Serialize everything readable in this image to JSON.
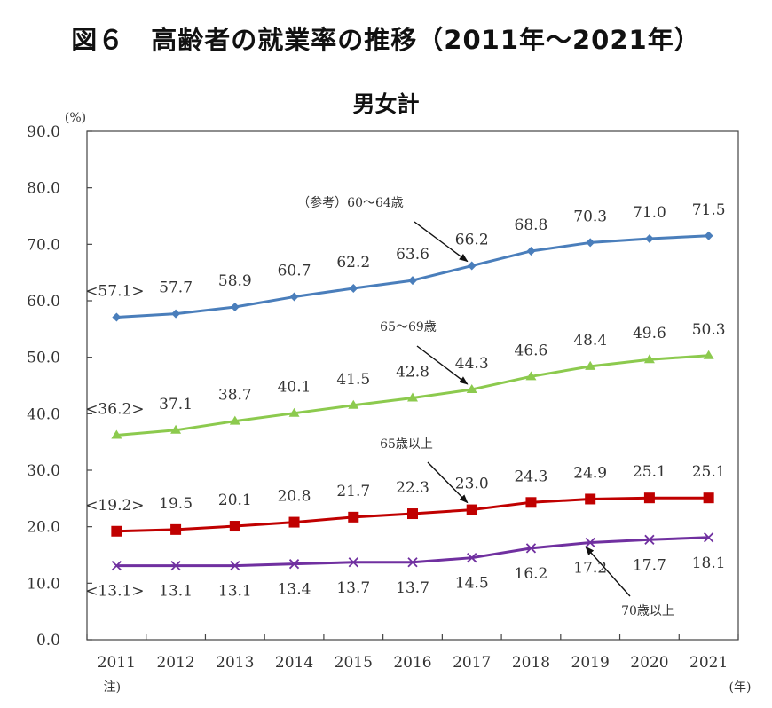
{
  "header": {
    "figure_title": "図６　高齢者の就業率の推移（2011年～2021年）"
  },
  "chart_data": {
    "type": "line",
    "title": "男女計",
    "ylabel": "(%)",
    "xlabel": "(年)",
    "x_note": "注)",
    "ylim": [
      0,
      90
    ],
    "yticks": [
      0,
      10,
      20,
      30,
      40,
      50,
      60,
      70,
      80,
      90
    ],
    "ytick_labels": [
      "0.0",
      "10.0",
      "20.0",
      "30.0",
      "40.0",
      "50.0",
      "60.0",
      "70.0",
      "80.0",
      "90.0"
    ],
    "categories": [
      "2011",
      "2012",
      "2013",
      "2014",
      "2015",
      "2016",
      "2017",
      "2018",
      "2019",
      "2020",
      "2021"
    ],
    "grid": false,
    "legend": "none",
    "series": [
      {
        "name": "（参考）60～64歳",
        "color": "#4a7ebb",
        "marker": "diamond",
        "values": [
          57.1,
          57.7,
          58.9,
          60.7,
          62.2,
          63.6,
          66.2,
          68.8,
          70.3,
          71.0,
          71.5
        ],
        "labels": [
          "<57.1>",
          "57.7",
          "58.9",
          "60.7",
          "62.2",
          "63.6",
          "66.2",
          "68.8",
          "70.3",
          "71.0",
          "71.5"
        ]
      },
      {
        "name": "65～69歳",
        "color": "#8cca4e",
        "marker": "triangle",
        "values": [
          36.2,
          37.1,
          38.7,
          40.1,
          41.5,
          42.8,
          44.3,
          46.6,
          48.4,
          49.6,
          50.3
        ],
        "labels": [
          "<36.2>",
          "37.1",
          "38.7",
          "40.1",
          "41.5",
          "42.8",
          "44.3",
          "46.6",
          "48.4",
          "49.6",
          "50.3"
        ]
      },
      {
        "name": "65歳以上",
        "color": "#c00000",
        "marker": "square",
        "values": [
          19.2,
          19.5,
          20.1,
          20.8,
          21.7,
          22.3,
          23.0,
          24.3,
          24.9,
          25.1,
          25.1
        ],
        "labels": [
          "<19.2>",
          "19.5",
          "20.1",
          "20.8",
          "21.7",
          "22.3",
          "23.0",
          "24.3",
          "24.9",
          "25.1",
          "25.1"
        ]
      },
      {
        "name": "70歳以上",
        "color": "#7030a0",
        "marker": "x",
        "values": [
          13.1,
          13.1,
          13.1,
          13.4,
          13.7,
          13.7,
          14.5,
          16.2,
          17.2,
          17.7,
          18.1
        ],
        "labels": [
          "<13.1>",
          "13.1",
          "13.1",
          "13.4",
          "13.7",
          "13.7",
          "14.5",
          "16.2",
          "17.2",
          "17.7",
          "18.1"
        ]
      }
    ]
  }
}
